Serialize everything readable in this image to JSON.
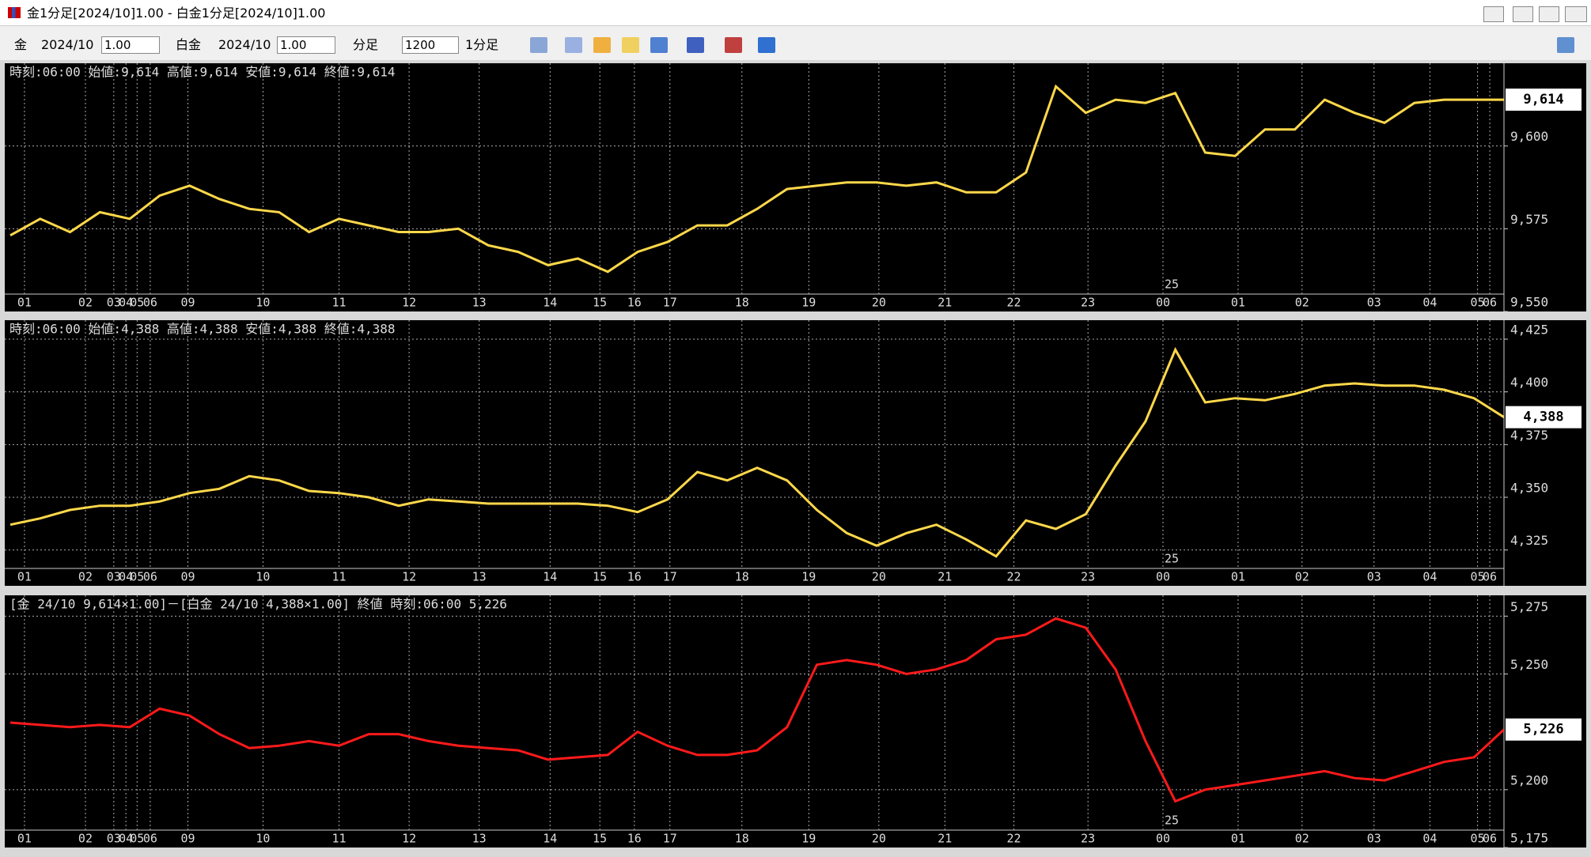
{
  "window": {
    "title": "金1分足[2024/10]1.00 - 白金1分足[2024/10]1.00"
  },
  "toolbar": {
    "item1": "金",
    "month1": "2024/10",
    "mult1": "1.00",
    "item2": "白金",
    "month2": "2024/10",
    "mult2": "1.00",
    "period_unit": "分足",
    "count": "1200",
    "period": "1分足"
  },
  "chart_data": [
    {
      "type": "line",
      "title": "時刻:06:00 始値:9,614 高値:9,614 安値:9,614 終値:9,614",
      "last_label": "9,614",
      "annotation": "25",
      "x": [
        0,
        2,
        4,
        6,
        8,
        10,
        12,
        14,
        16,
        18,
        20,
        22,
        24,
        26,
        28,
        30,
        32,
        34,
        36,
        38,
        40,
        42,
        44,
        46,
        48,
        50,
        52,
        54,
        56,
        58,
        60,
        62,
        64,
        66,
        68,
        70,
        72,
        74,
        76,
        78,
        80,
        82,
        84,
        86,
        88,
        90,
        92,
        94,
        96,
        98,
        100
      ],
      "series": [
        {
          "color": "#ffd84a",
          "values": [
            9573,
            9578,
            9574,
            9580,
            9578,
            9585,
            9588,
            9584,
            9581,
            9580,
            9574,
            9578,
            9576,
            9574,
            9574,
            9575,
            9570,
            9568,
            9564,
            9566,
            9562,
            9568,
            9571,
            9576,
            9576,
            9581,
            9587,
            9588,
            9589,
            9589,
            9588,
            9589,
            9586,
            9586,
            9592,
            9618,
            9610,
            9614,
            9613,
            9616,
            9598,
            9597,
            9605,
            9605,
            9614,
            9610,
            9607,
            9613,
            9614,
            9614,
            9614
          ]
        }
      ],
      "xlim": [
        0,
        100
      ],
      "xticks": [
        {
          "value": 0.95,
          "label": "01"
        },
        {
          "value": 5.03,
          "label": "02"
        },
        {
          "value": 6.93,
          "label": "03"
        },
        {
          "value": 7.74,
          "label": "04"
        },
        {
          "value": 8.49,
          "label": "05"
        },
        {
          "value": 9.37,
          "label": "06"
        },
        {
          "value": 11.89,
          "label": "09"
        },
        {
          "value": 16.92,
          "label": "10"
        },
        {
          "value": 22.01,
          "label": "11"
        },
        {
          "value": 26.7,
          "label": "12"
        },
        {
          "value": 31.39,
          "label": "13"
        },
        {
          "value": 36.14,
          "label": "14"
        },
        {
          "value": 39.47,
          "label": "15"
        },
        {
          "value": 41.78,
          "label": "16"
        },
        {
          "value": 44.16,
          "label": "17"
        },
        {
          "value": 48.98,
          "label": "18"
        },
        {
          "value": 53.46,
          "label": "19"
        },
        {
          "value": 58.15,
          "label": "20"
        },
        {
          "value": 62.57,
          "label": "21"
        },
        {
          "value": 67.19,
          "label": "22"
        },
        {
          "value": 72.15,
          "label": "23"
        },
        {
          "value": 77.17,
          "label": "00"
        },
        {
          "value": 82.2,
          "label": "01"
        },
        {
          "value": 86.48,
          "label": "02"
        },
        {
          "value": 91.3,
          "label": "03"
        },
        {
          "value": 95.04,
          "label": "04"
        },
        {
          "value": 98.23,
          "label": "05"
        },
        {
          "value": 99.05,
          "label": "06"
        }
      ],
      "ylim": [
        9550,
        9625
      ],
      "yticks": [
        {
          "value": 9550,
          "label": "9,550"
        },
        {
          "value": 9575,
          "label": "9,575"
        },
        {
          "value": 9600,
          "label": "9,600"
        }
      ],
      "grid": true
    },
    {
      "type": "line",
      "title": "時刻:06:00 始値:4,388 高値:4,388 安値:4,388 終値:4,388",
      "last_label": "4,388",
      "annotation": "25",
      "x": [
        0,
        2,
        4,
        6,
        8,
        10,
        12,
        14,
        16,
        18,
        20,
        22,
        24,
        26,
        28,
        30,
        32,
        34,
        36,
        38,
        40,
        42,
        44,
        46,
        48,
        50,
        52,
        54,
        56,
        58,
        60,
        62,
        64,
        66,
        68,
        70,
        72,
        74,
        76,
        78,
        80,
        82,
        84,
        86,
        88,
        90,
        92,
        94,
        96,
        98,
        100
      ],
      "series": [
        {
          "color": "#ffd84a",
          "values": [
            4337,
            4340,
            4344,
            4346,
            4346,
            4348,
            4352,
            4354,
            4360,
            4358,
            4353,
            4352,
            4350,
            4346,
            4349,
            4348,
            4347,
            4347,
            4347,
            4347,
            4346,
            4343,
            4349,
            4362,
            4358,
            4364,
            4358,
            4344,
            4333,
            4327,
            4333,
            4337,
            4330,
            4322,
            4339,
            4335,
            4342,
            4365,
            4386,
            4420,
            4395,
            4397,
            4396,
            4399,
            4403,
            4404,
            4403,
            4403,
            4401,
            4397,
            4388
          ]
        }
      ],
      "xlim": [
        0,
        100
      ],
      "xticks": [
        {
          "value": 0.95,
          "label": "01"
        },
        {
          "value": 5.03,
          "label": "02"
        },
        {
          "value": 6.93,
          "label": "03"
        },
        {
          "value": 7.74,
          "label": "04"
        },
        {
          "value": 8.49,
          "label": "05"
        },
        {
          "value": 9.37,
          "label": "06"
        },
        {
          "value": 11.89,
          "label": "09"
        },
        {
          "value": 16.92,
          "label": "10"
        },
        {
          "value": 22.01,
          "label": "11"
        },
        {
          "value": 26.7,
          "label": "12"
        },
        {
          "value": 31.39,
          "label": "13"
        },
        {
          "value": 36.14,
          "label": "14"
        },
        {
          "value": 39.47,
          "label": "15"
        },
        {
          "value": 41.78,
          "label": "16"
        },
        {
          "value": 44.16,
          "label": "17"
        },
        {
          "value": 48.98,
          "label": "18"
        },
        {
          "value": 53.46,
          "label": "19"
        },
        {
          "value": 58.15,
          "label": "20"
        },
        {
          "value": 62.57,
          "label": "21"
        },
        {
          "value": 67.19,
          "label": "22"
        },
        {
          "value": 72.15,
          "label": "23"
        },
        {
          "value": 77.17,
          "label": "00"
        },
        {
          "value": 82.2,
          "label": "01"
        },
        {
          "value": 86.48,
          "label": "02"
        },
        {
          "value": 91.3,
          "label": "03"
        },
        {
          "value": 95.04,
          "label": "04"
        },
        {
          "value": 98.23,
          "label": "05"
        },
        {
          "value": 99.05,
          "label": "06"
        }
      ],
      "ylim": [
        4308,
        4434
      ],
      "yticks": [
        {
          "value": 4325,
          "label": "4,325"
        },
        {
          "value": 4350,
          "label": "4,350"
        },
        {
          "value": 4375,
          "label": "4,375"
        },
        {
          "value": 4400,
          "label": "4,400"
        },
        {
          "value": 4425,
          "label": "4,425"
        }
      ],
      "grid": true
    },
    {
      "type": "line",
      "title": "[金 24/10 9,614×1.00]－[白金 24/10 4,388×1.00] 終値 時刻:06:00 5,226",
      "last_label": "5,226",
      "annotation": "25",
      "x": [
        0,
        2,
        4,
        6,
        8,
        10,
        12,
        14,
        16,
        18,
        20,
        22,
        24,
        26,
        28,
        30,
        32,
        34,
        36,
        38,
        40,
        42,
        44,
        46,
        48,
        50,
        52,
        54,
        56,
        58,
        60,
        62,
        64,
        66,
        68,
        70,
        72,
        74,
        76,
        78,
        80,
        82,
        84,
        86,
        88,
        90,
        92,
        94,
        96,
        98,
        100
      ],
      "series": [
        {
          "color": "#ff1a1a",
          "values": [
            5229,
            5228,
            5227,
            5228,
            5227,
            5235,
            5232,
            5224,
            5218,
            5219,
            5221,
            5219,
            5224,
            5224,
            5221,
            5219,
            5218,
            5217,
            5213,
            5214,
            5215,
            5225,
            5219,
            5215,
            5215,
            5217,
            5227,
            5254,
            5256,
            5254,
            5250,
            5252,
            5256,
            5265,
            5267,
            5274,
            5270,
            5252,
            5221,
            5195,
            5200,
            5202,
            5204,
            5206,
            5208,
            5205,
            5204,
            5208,
            5212,
            5214,
            5226
          ]
        }
      ],
      "xlim": [
        0,
        100
      ],
      "xticks": [
        {
          "value": 0.95,
          "label": "01"
        },
        {
          "value": 5.03,
          "label": "02"
        },
        {
          "value": 6.93,
          "label": "03"
        },
        {
          "value": 7.74,
          "label": "04"
        },
        {
          "value": 8.49,
          "label": "05"
        },
        {
          "value": 9.37,
          "label": "06"
        },
        {
          "value": 11.89,
          "label": "09"
        },
        {
          "value": 16.92,
          "label": "10"
        },
        {
          "value": 22.01,
          "label": "11"
        },
        {
          "value": 26.7,
          "label": "12"
        },
        {
          "value": 31.39,
          "label": "13"
        },
        {
          "value": 36.14,
          "label": "14"
        },
        {
          "value": 39.47,
          "label": "15"
        },
        {
          "value": 41.78,
          "label": "16"
        },
        {
          "value": 44.16,
          "label": "17"
        },
        {
          "value": 48.98,
          "label": "18"
        },
        {
          "value": 53.46,
          "label": "19"
        },
        {
          "value": 58.15,
          "label": "20"
        },
        {
          "value": 62.57,
          "label": "21"
        },
        {
          "value": 67.19,
          "label": "22"
        },
        {
          "value": 72.15,
          "label": "23"
        },
        {
          "value": 77.17,
          "label": "00"
        },
        {
          "value": 82.2,
          "label": "01"
        },
        {
          "value": 86.48,
          "label": "02"
        },
        {
          "value": 91.3,
          "label": "03"
        },
        {
          "value": 95.04,
          "label": "04"
        },
        {
          "value": 98.23,
          "label": "05"
        },
        {
          "value": 99.05,
          "label": "06"
        }
      ],
      "ylim": [
        5175,
        5284
      ],
      "yticks": [
        {
          "value": 5175,
          "label": "5,175"
        },
        {
          "value": 5200,
          "label": "5,200"
        },
        {
          "value": 5250,
          "label": "5,250"
        },
        {
          "value": 5275,
          "label": "5,275"
        }
      ],
      "grid": true
    }
  ]
}
